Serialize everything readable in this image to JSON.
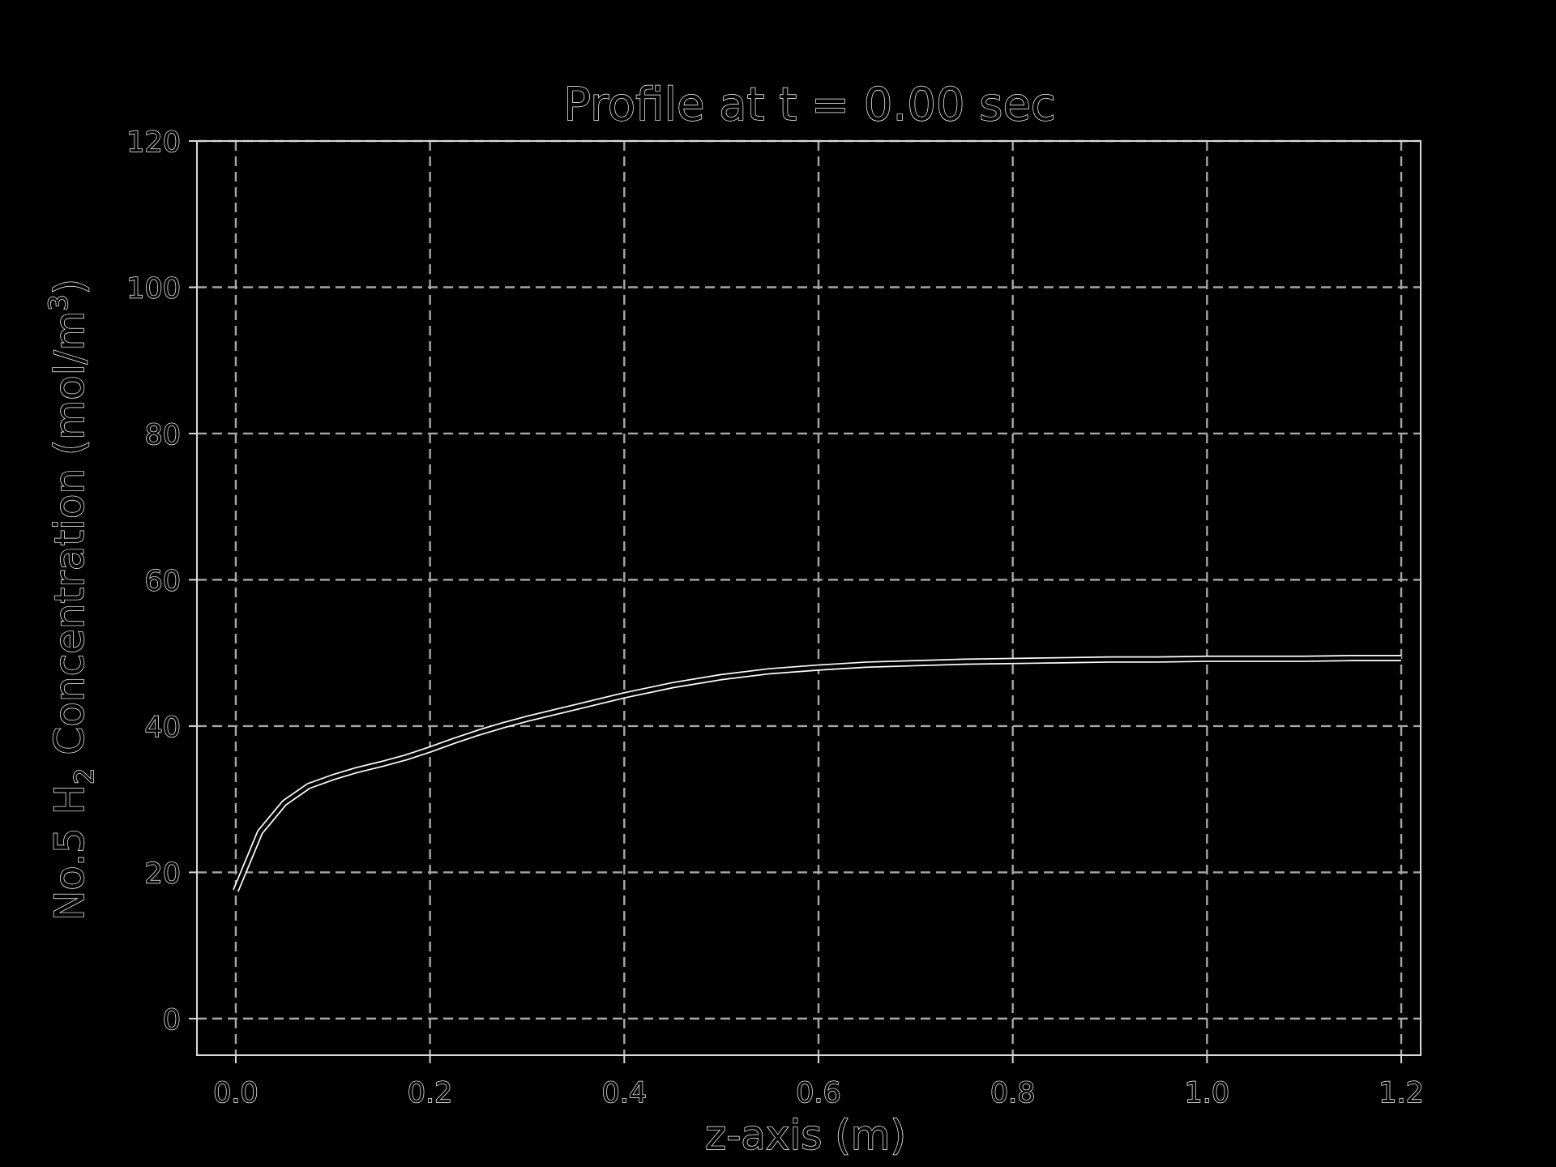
{
  "chart_data": {
    "type": "line",
    "title": "Profile at t = 0.00 sec",
    "xlabel": "z-axis (m)",
    "ylabel": {
      "prefix": "No.5 H",
      "sub": "2",
      "middle": " Concentration (mol/m",
      "sup": "3",
      "suffix": ")"
    },
    "xlim": [
      -0.04,
      1.22
    ],
    "ylim": [
      -5,
      120
    ],
    "xticks": [
      0.0,
      0.2,
      0.4,
      0.6,
      0.8,
      1.0,
      1.2
    ],
    "xtick_labels": [
      "0.0",
      "0.2",
      "0.4",
      "0.6",
      "0.8",
      "1.0",
      "1.2"
    ],
    "yticks": [
      0,
      20,
      40,
      60,
      80,
      100,
      120
    ],
    "ytick_labels": [
      "0",
      "20",
      "40",
      "60",
      "80",
      "100",
      "120"
    ],
    "grid": true,
    "line_color": "#ffffff",
    "grid_color": "#a8a8a8",
    "background": "#000000",
    "series": [
      {
        "x": [
          0.0,
          0.025,
          0.05,
          0.075,
          0.1,
          0.125,
          0.15,
          0.175,
          0.2,
          0.225,
          0.25,
          0.275,
          0.3,
          0.35,
          0.4,
          0.45,
          0.5,
          0.55,
          0.6,
          0.65,
          0.7,
          0.75,
          0.8,
          0.85,
          0.9,
          0.95,
          1.0,
          1.05,
          1.1,
          1.15,
          1.2
        ],
        "y": [
          17.5,
          25.5,
          29.5,
          31.8,
          33.0,
          34.0,
          34.8,
          35.7,
          36.8,
          38.0,
          39.1,
          40.1,
          41.0,
          42.6,
          44.2,
          45.6,
          46.7,
          47.5,
          48.0,
          48.4,
          48.6,
          48.8,
          48.9,
          49.0,
          49.1,
          49.1,
          49.2,
          49.2,
          49.2,
          49.3,
          49.3
        ]
      }
    ]
  }
}
